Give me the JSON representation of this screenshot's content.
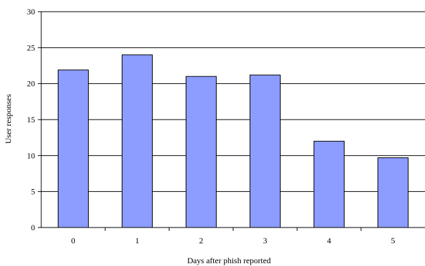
{
  "chart_data": {
    "type": "bar",
    "title": "",
    "xlabel": "Days after phish reported",
    "ylabel": "User responses",
    "categories": [
      "0",
      "1",
      "2",
      "3",
      "4",
      "5"
    ],
    "values": [
      21.9,
      24.0,
      21.0,
      21.2,
      12.0,
      9.7
    ],
    "ylim": [
      0,
      30
    ],
    "yticks": [
      "0",
      "5",
      "10",
      "15",
      "20",
      "25",
      "30"
    ],
    "grid": true,
    "legend": "none",
    "colors": {
      "bar_fill": "#8c9cff",
      "bar_stroke": "#000000",
      "grid": "#000000",
      "axis": "#000000"
    }
  }
}
